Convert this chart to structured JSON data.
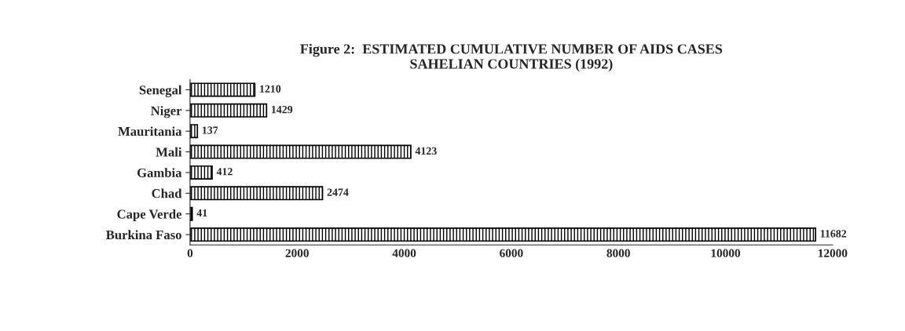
{
  "chart_data": {
    "type": "bar",
    "orientation": "horizontal",
    "title": "Figure 2:  ESTIMATED CUMULATIVE NUMBER OF AIDS CASES\nSAHELIAN COUNTRIES (1992)",
    "categories": [
      "Senegal",
      "Niger",
      "Mauritania",
      "Mali",
      "Gambia",
      "Chad",
      "Cape Verde",
      "Burkina Faso"
    ],
    "values": [
      1210,
      1429,
      137,
      4123,
      412,
      2474,
      41,
      11682
    ],
    "color": "#000000",
    "xlim": [
      0,
      12000
    ],
    "xticks": [
      0,
      2000,
      4000,
      6000,
      8000,
      10000,
      12000
    ],
    "data_labels": true,
    "grid": false
  }
}
